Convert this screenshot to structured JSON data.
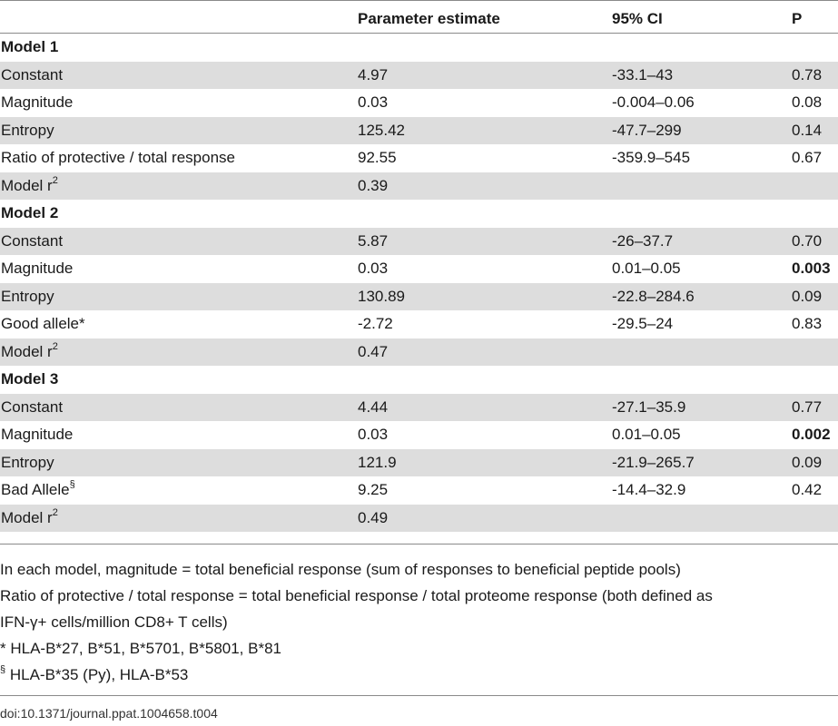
{
  "header": {
    "param": "",
    "estimate": "Parameter estimate",
    "ci": "95% CI",
    "p": "P"
  },
  "rows": [
    {
      "type": "section",
      "label": "Model 1"
    },
    {
      "type": "row",
      "label": "Constant",
      "estimate": "4.97",
      "ci": "-33.1–43",
      "p": "0.78"
    },
    {
      "type": "row",
      "label": "Magnitude",
      "estimate": "0.03",
      "ci": "-0.004–0.06",
      "p": "0.08"
    },
    {
      "type": "row",
      "label": "Entropy",
      "estimate": "125.42",
      "ci": "-47.7–299",
      "p": "0.14"
    },
    {
      "type": "row",
      "label": "Ratio of protective / total response",
      "estimate": "92.55",
      "ci": "-359.9–545",
      "p": "0.67"
    },
    {
      "type": "row",
      "label": "Model r",
      "sup": "2",
      "estimate": "0.39",
      "ci": "",
      "p": ""
    },
    {
      "type": "section",
      "label": "Model 2"
    },
    {
      "type": "row",
      "label": "Constant",
      "estimate": "5.87",
      "ci": "-26–37.7",
      "p": "0.70"
    },
    {
      "type": "row",
      "label": "Magnitude",
      "estimate": "0.03",
      "ci": "0.01–0.05",
      "p": "0.003",
      "p_bold": true
    },
    {
      "type": "row",
      "label": "Entropy",
      "estimate": "130.89",
      "ci": "-22.8–284.6",
      "p": "0.09"
    },
    {
      "type": "row",
      "label": "Good allele*",
      "estimate": "-2.72",
      "ci": "-29.5–24",
      "p": "0.83"
    },
    {
      "type": "row",
      "label": "Model r",
      "sup": "2",
      "estimate": "0.47",
      "ci": "",
      "p": ""
    },
    {
      "type": "section",
      "label": "Model 3"
    },
    {
      "type": "row",
      "label": "Constant",
      "estimate": "4.44",
      "ci": "-27.1–35.9",
      "p": "0.77"
    },
    {
      "type": "row",
      "label": "Magnitude",
      "estimate": "0.03",
      "ci": "0.01–0.05",
      "p": "0.002",
      "p_bold": true
    },
    {
      "type": "row",
      "label": "Entropy",
      "estimate": "121.9",
      "ci": "-21.9–265.7",
      "p": "0.09"
    },
    {
      "type": "row",
      "label": "Bad Allele",
      "sup": "§",
      "estimate": "9.25",
      "ci": "-14.4–32.9",
      "p": "0.42"
    },
    {
      "type": "row",
      "label": "Model r",
      "sup": "2",
      "estimate": "0.49",
      "ci": "",
      "p": ""
    }
  ],
  "notes": [
    {
      "sup": "",
      "text": "In each model, magnitude = total beneficial response (sum of responses to beneficial peptide pools)"
    },
    {
      "sup": "",
      "text": "Ratio of protective / total response = total beneficial response / total proteome response (both defined as"
    },
    {
      "sup": "",
      "text": "IFN-γ+ cells/million CD8+ T cells)"
    },
    {
      "sup": "",
      "text": "* HLA-B*27, B*51, B*5701, B*5801, B*81"
    },
    {
      "sup": "§",
      "text": " HLA-B*35 (Py), HLA-B*53"
    }
  ],
  "doi": "doi:10.1371/journal.ppat.1004658.t004"
}
